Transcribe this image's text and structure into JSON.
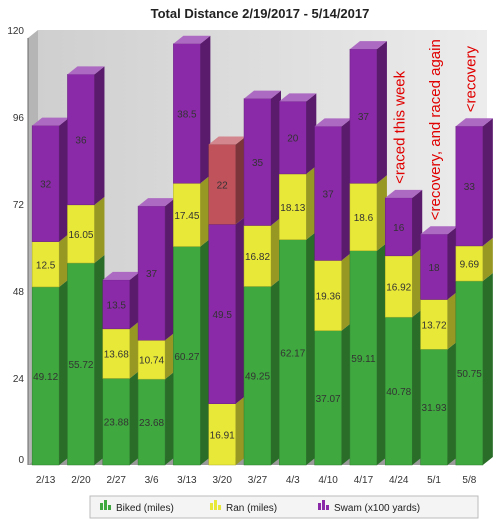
{
  "chart_data": {
    "type": "bar",
    "stacked": true,
    "three_d": true,
    "title": "Total Distance 2/19/2017 - 5/14/2017",
    "categories": [
      "2/13",
      "2/20",
      "2/27",
      "3/6",
      "3/13",
      "3/20",
      "3/27",
      "4/3",
      "4/10",
      "4/17",
      "4/24",
      "5/1",
      "5/8"
    ],
    "ylim": [
      0,
      120
    ],
    "yticks": [
      0,
      24,
      48,
      72,
      96,
      120
    ],
    "grid": false,
    "legend_position": "bottom",
    "series": [
      {
        "name": "Biked (miles)",
        "color": "#3fa83f",
        "values": [
          49.12,
          55.72,
          23.88,
          23.68,
          60.27,
          0,
          49.25,
          62.17,
          37.07,
          59.11,
          40.78,
          31.93,
          50.75
        ]
      },
      {
        "name": "Ran (miles)",
        "color": "#e8e838",
        "values": [
          12.5,
          16.05,
          13.68,
          10.74,
          17.45,
          16.91,
          16.82,
          18.13,
          19.36,
          18.6,
          16.92,
          13.72,
          9.69
        ]
      },
      {
        "name": "Swam (x100 yards)",
        "color": "#8a2aa8",
        "values": [
          32,
          36,
          13.5,
          37,
          38.5,
          49.5,
          35,
          20,
          37,
          37,
          16,
          18,
          33
        ]
      },
      {
        "name": "",
        "color": "#c0525c",
        "values": [
          0,
          0,
          0,
          0,
          0,
          22,
          0,
          0,
          0,
          0,
          0,
          0,
          0
        ]
      }
    ],
    "annotations": [
      {
        "text": "<raced this week",
        "category": "4/24",
        "color": "#e00000"
      },
      {
        "text": "<recovery, and raced again",
        "category": "5/1",
        "color": "#e00000"
      },
      {
        "text": "<recovery",
        "category": "5/8",
        "color": "#e00000"
      }
    ]
  }
}
